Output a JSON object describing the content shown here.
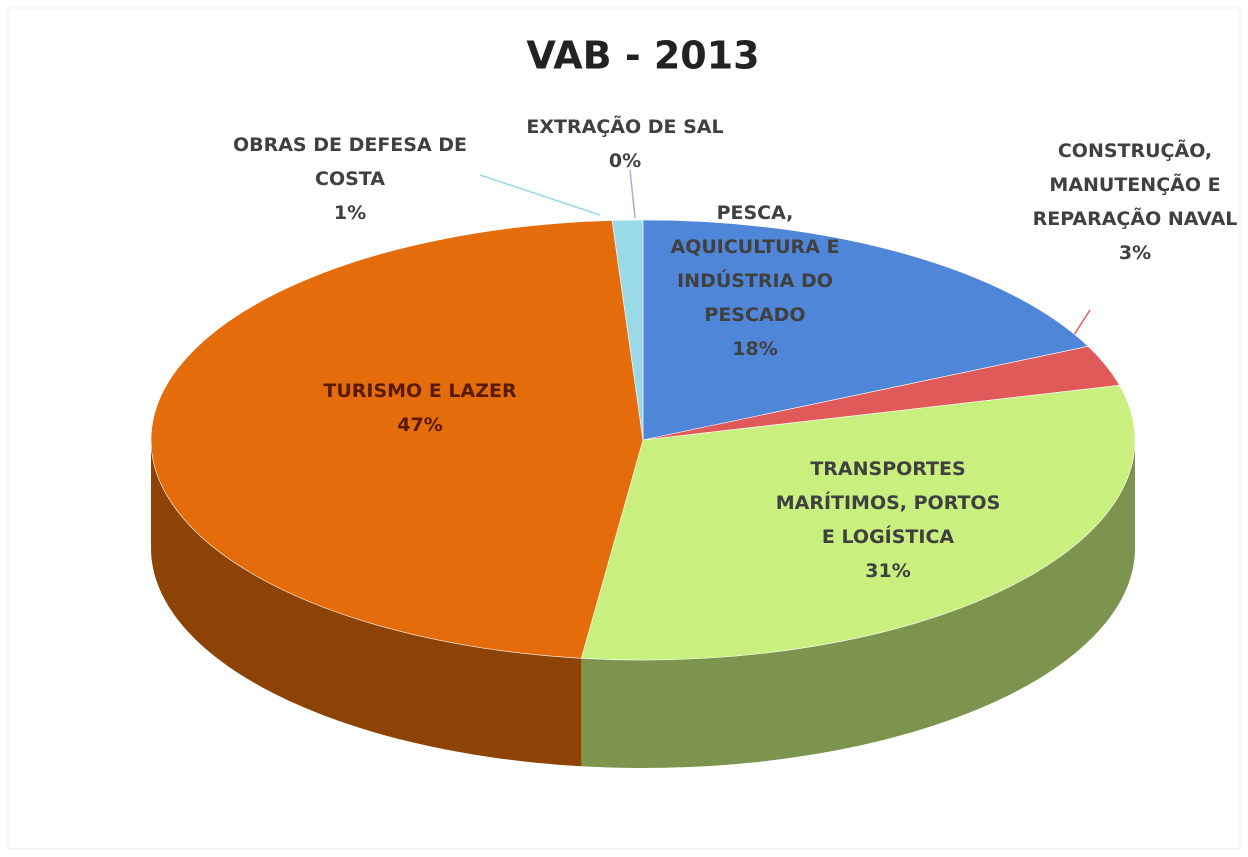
{
  "chart_data": {
    "type": "pie",
    "title": "VAB - 2013",
    "categories": [
      "EXTRAÇÃO DE SAL",
      "PESCA, AQUICULTURA E INDÚSTRIA DO PESCADO",
      "CONSTRUÇÃO, MANUTENÇÃO E REPARAÇÃO NAVAL",
      "TRANSPORTES MARÍTIMOS, PORTOS E LOGÍSTICA",
      "TURISMO E LAZER",
      "OBRAS DE DEFESA DE COSTA"
    ],
    "values": [
      0,
      18,
      3,
      31,
      47,
      1
    ],
    "value_labels": [
      "0%",
      "18%",
      "3%",
      "31%",
      "47%",
      "1%"
    ],
    "colors": [
      "#b9a7d6",
      "#4f86d8",
      "#e05a5a",
      "#c9ef7e",
      "#e46c0a",
      "#9ad9e8"
    ]
  }
}
